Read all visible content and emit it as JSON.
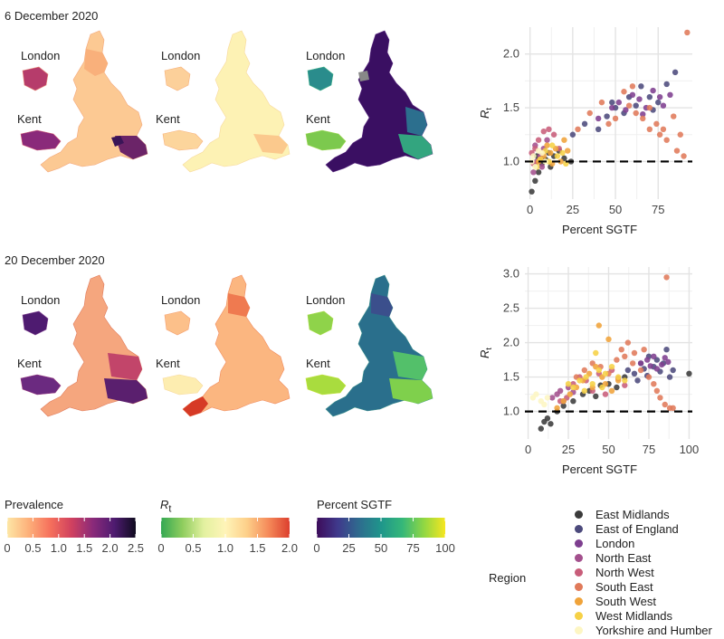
{
  "rows": [
    {
      "date_title": "6 December 2020"
    },
    {
      "date_title": "20 December 2020"
    }
  ],
  "map_labels": {
    "london": "London",
    "kent": "Kent"
  },
  "colorbars": [
    {
      "title": "Prevalence",
      "ticks": [
        "0",
        "0.5",
        "1.0",
        "1.5",
        "2.0",
        "2.5"
      ],
      "range": [
        0,
        2.5
      ],
      "colors": [
        "#fde7a6",
        "#fdb07a",
        "#f6705c",
        "#d0415f",
        "#8a2a7a",
        "#4e1b70",
        "#0f0b1f"
      ]
    },
    {
      "title": "R",
      "title_sub": "t",
      "ticks": [
        "0",
        "0.5",
        "1.0",
        "1.5",
        "2.0"
      ],
      "range": [
        0,
        2.0
      ],
      "colors": [
        "#34a853",
        "#8fcd5e",
        "#e3f1a0",
        "#fff4b8",
        "#fdd08a",
        "#f58b5a",
        "#dc3f2e"
      ]
    },
    {
      "title": "Percent SGTF",
      "ticks": [
        "0",
        "25",
        "50",
        "75",
        "100"
      ],
      "range": [
        0,
        100
      ],
      "colors": [
        "#3d0c5b",
        "#3f3a8c",
        "#2e6d8e",
        "#1f968b",
        "#35b779",
        "#90d743",
        "#f6e620"
      ]
    }
  ],
  "legend": {
    "title": "Region",
    "items": [
      {
        "name": "East Midlands",
        "color": "#3b3b3b"
      },
      {
        "name": "East of England",
        "color": "#4c4a7c"
      },
      {
        "name": "London",
        "color": "#7e3f8f"
      },
      {
        "name": "North East",
        "color": "#a3508d"
      },
      {
        "name": "North West",
        "color": "#c85d7a"
      },
      {
        "name": "South East",
        "color": "#e07a5a"
      },
      {
        "name": "South West",
        "color": "#f0a33a"
      },
      {
        "name": "West Midlands",
        "color": "#f6d146"
      },
      {
        "name": "Yorkshire and Humber",
        "color": "#fdf6c3"
      }
    ]
  },
  "chart_data": [
    {
      "type": "scatter",
      "xlabel": "Percent SGTF",
      "ylabel": "R",
      "ylabel_sub": "t",
      "xlim": [
        -3,
        95
      ],
      "ylim": [
        0.65,
        2.25
      ],
      "xticks": [
        0,
        25,
        50,
        75
      ],
      "yticks": [
        1.0,
        1.5,
        2.0
      ],
      "ytick_labels": [
        "1.0",
        "1.5",
        "2.0"
      ],
      "reference_line": 1.0,
      "grid": true,
      "series": [
        {
          "name": "East Midlands",
          "points": [
            [
              1,
              0.72
            ],
            [
              3,
              0.82
            ],
            [
              5,
              0.9
            ],
            [
              7,
              0.98
            ],
            [
              9,
              1.02
            ],
            [
              11,
              1.08
            ],
            [
              14,
              1.05
            ],
            [
              17,
              1.1
            ],
            [
              20,
              1.03
            ],
            [
              24,
              1.0
            ],
            [
              4,
              1.05
            ],
            [
              12,
              0.95
            ]
          ]
        },
        {
          "name": "East of England",
          "points": [
            [
              25,
              1.25
            ],
            [
              32,
              1.35
            ],
            [
              40,
              1.3
            ],
            [
              45,
              1.42
            ],
            [
              50,
              1.5
            ],
            [
              55,
              1.45
            ],
            [
              58,
              1.6
            ],
            [
              62,
              1.52
            ],
            [
              65,
              1.7
            ],
            [
              70,
              1.6
            ],
            [
              75,
              1.55
            ],
            [
              80,
              1.72
            ],
            [
              85,
              1.83
            ],
            [
              48,
              1.55
            ],
            [
              72,
              1.48
            ]
          ]
        },
        {
          "name": "London",
          "points": [
            [
              40,
              1.4
            ],
            [
              48,
              1.5
            ],
            [
              52,
              1.55
            ],
            [
              56,
              1.48
            ],
            [
              60,
              1.62
            ],
            [
              64,
              1.58
            ],
            [
              68,
              1.5
            ],
            [
              72,
              1.66
            ],
            [
              76,
              1.6
            ],
            [
              78,
              1.52
            ],
            [
              82,
              1.62
            ],
            [
              66,
              1.44
            ]
          ]
        },
        {
          "name": "North East",
          "points": [
            [
              2,
              0.9
            ],
            [
              4,
              1.0
            ],
            [
              6,
              1.05
            ],
            [
              8,
              1.12
            ],
            [
              10,
              1.2
            ],
            [
              3,
              1.15
            ],
            [
              7,
              0.95
            ]
          ]
        },
        {
          "name": "North West",
          "points": [
            [
              1,
              1.08
            ],
            [
              3,
              1.12
            ],
            [
              5,
              1.2
            ],
            [
              8,
              1.28
            ],
            [
              11,
              1.3
            ],
            [
              14,
              1.25
            ],
            [
              17,
              1.12
            ],
            [
              2,
              0.98
            ],
            [
              6,
              1.02
            ]
          ]
        },
        {
          "name": "South East",
          "points": [
            [
              28,
              1.3
            ],
            [
              35,
              1.45
            ],
            [
              42,
              1.55
            ],
            [
              46,
              1.35
            ],
            [
              50,
              1.4
            ],
            [
              55,
              1.65
            ],
            [
              60,
              1.7
            ],
            [
              62,
              1.45
            ],
            [
              66,
              1.4
            ],
            [
              70,
              1.5
            ],
            [
              74,
              1.35
            ],
            [
              78,
              1.3
            ],
            [
              80,
              1.2
            ],
            [
              84,
              1.42
            ],
            [
              88,
              1.25
            ],
            [
              90,
              1.05
            ],
            [
              92,
              2.2
            ],
            [
              86,
              1.1
            ],
            [
              76,
              1.25
            ],
            [
              70,
              1.3
            ],
            [
              58,
              1.52
            ]
          ]
        },
        {
          "name": "South West",
          "points": [
            [
              5,
              1.0
            ],
            [
              8,
              1.05
            ],
            [
              10,
              1.15
            ],
            [
              12,
              1.08
            ],
            [
              15,
              1.12
            ],
            [
              18,
              1.0
            ],
            [
              20,
              1.2
            ],
            [
              22,
              1.1
            ],
            [
              13,
              0.98
            ]
          ]
        },
        {
          "name": "West Midlands",
          "points": [
            [
              4,
              0.95
            ],
            [
              6,
              1.02
            ],
            [
              9,
              1.1
            ],
            [
              11,
              1.0
            ],
            [
              13,
              1.15
            ],
            [
              16,
              1.05
            ],
            [
              19,
              1.08
            ],
            [
              21,
              0.98
            ]
          ]
        },
        {
          "name": "Yorkshire and Humber",
          "points": [
            [
              1,
              1.0
            ],
            [
              2,
              1.05
            ],
            [
              3,
              0.95
            ],
            [
              5,
              1.1
            ],
            [
              7,
              1.08
            ],
            [
              9,
              1.0
            ]
          ]
        }
      ]
    },
    {
      "type": "scatter",
      "xlabel": "Percent SGTF",
      "ylabel": "R",
      "ylabel_sub": "t",
      "xlim": [
        -2,
        102
      ],
      "ylim": [
        0.6,
        3.1
      ],
      "xticks": [
        0,
        25,
        50,
        75,
        100
      ],
      "yticks": [
        1.0,
        1.5,
        2.0,
        2.5,
        3.0
      ],
      "ytick_labels": [
        "1.0",
        "1.5",
        "2.0",
        "2.5",
        "3.0"
      ],
      "reference_line": 1.0,
      "grid": true,
      "series": [
        {
          "name": "East Midlands",
          "points": [
            [
              8,
              0.75
            ],
            [
              10,
              0.85
            ],
            [
              12,
              0.9
            ],
            [
              14,
              0.82
            ],
            [
              18,
              1.0
            ],
            [
              22,
              1.08
            ],
            [
              28,
              1.15
            ],
            [
              34,
              1.25
            ],
            [
              38,
              1.3
            ],
            [
              42,
              1.22
            ],
            [
              45,
              1.38
            ],
            [
              50,
              1.4
            ],
            [
              55,
              1.35
            ],
            [
              60,
              1.5
            ],
            [
              100,
              1.55
            ]
          ]
        },
        {
          "name": "East of England",
          "points": [
            [
              62,
              1.6
            ],
            [
              66,
              1.55
            ],
            [
              70,
              1.7
            ],
            [
              72,
              1.62
            ],
            [
              75,
              1.8
            ],
            [
              78,
              1.65
            ],
            [
              80,
              1.75
            ],
            [
              82,
              1.58
            ],
            [
              84,
              1.7
            ],
            [
              86,
              1.9
            ],
            [
              88,
              1.5
            ],
            [
              90,
              1.6
            ],
            [
              74,
              1.52
            ],
            [
              68,
              1.45
            ]
          ]
        },
        {
          "name": "London",
          "points": [
            [
              70,
              1.7
            ],
            [
              74,
              1.75
            ],
            [
              78,
              1.8
            ],
            [
              80,
              1.62
            ],
            [
              83,
              1.68
            ],
            [
              85,
              1.78
            ],
            [
              87,
              1.72
            ],
            [
              76,
              1.66
            ]
          ]
        },
        {
          "name": "North East",
          "points": [
            [
              15,
              1.2
            ],
            [
              18,
              1.25
            ],
            [
              20,
              1.3
            ],
            [
              22,
              1.15
            ],
            [
              25,
              1.35
            ],
            [
              28,
              1.28
            ]
          ]
        },
        {
          "name": "North West",
          "points": [
            [
              20,
              1.15
            ],
            [
              24,
              1.2
            ],
            [
              28,
              1.4
            ],
            [
              32,
              1.5
            ],
            [
              36,
              1.45
            ],
            [
              40,
              1.3
            ],
            [
              44,
              1.55
            ],
            [
              48,
              1.25
            ],
            [
              52,
              1.6
            ],
            [
              56,
              1.48
            ],
            [
              60,
              1.38
            ]
          ]
        },
        {
          "name": "South East",
          "points": [
            [
              30,
              1.5
            ],
            [
              35,
              1.6
            ],
            [
              40,
              1.7
            ],
            [
              45,
              1.65
            ],
            [
              50,
              1.55
            ],
            [
              55,
              1.75
            ],
            [
              60,
              1.8
            ],
            [
              65,
              1.7
            ],
            [
              70,
              1.6
            ],
            [
              75,
              1.5
            ],
            [
              78,
              1.4
            ],
            [
              80,
              1.3
            ],
            [
              82,
              1.2
            ],
            [
              85,
              1.1
            ],
            [
              88,
              1.05
            ],
            [
              90,
              1.05
            ],
            [
              86,
              2.95
            ],
            [
              72,
              1.9
            ],
            [
              66,
              1.85
            ],
            [
              58,
              1.9
            ],
            [
              62,
              2.0
            ]
          ]
        },
        {
          "name": "South West",
          "points": [
            [
              18,
              1.05
            ],
            [
              22,
              1.15
            ],
            [
              26,
              1.25
            ],
            [
              30,
              1.35
            ],
            [
              34,
              1.45
            ],
            [
              38,
              1.55
            ],
            [
              42,
              1.65
            ],
            [
              44,
              2.25
            ],
            [
              46,
              1.5
            ],
            [
              48,
              1.4
            ],
            [
              50,
              2.05
            ],
            [
              52,
              1.3
            ],
            [
              56,
              1.45
            ],
            [
              40,
              1.35
            ]
          ]
        },
        {
          "name": "West Midlands",
          "points": [
            [
              25,
              1.4
            ],
            [
              28,
              1.35
            ],
            [
              32,
              1.45
            ],
            [
              36,
              1.5
            ],
            [
              40,
              1.4
            ],
            [
              44,
              1.6
            ],
            [
              48,
              1.55
            ],
            [
              52,
              1.65
            ],
            [
              56,
              1.5
            ],
            [
              60,
              1.45
            ],
            [
              35,
              1.3
            ],
            [
              46,
              1.35
            ],
            [
              42,
              1.85
            ]
          ]
        },
        {
          "name": "Yorkshire and Humber",
          "points": [
            [
              3,
              1.2
            ],
            [
              5,
              1.25
            ],
            [
              8,
              1.15
            ],
            [
              10,
              1.1
            ],
            [
              12,
              1.2
            ]
          ]
        }
      ]
    }
  ]
}
